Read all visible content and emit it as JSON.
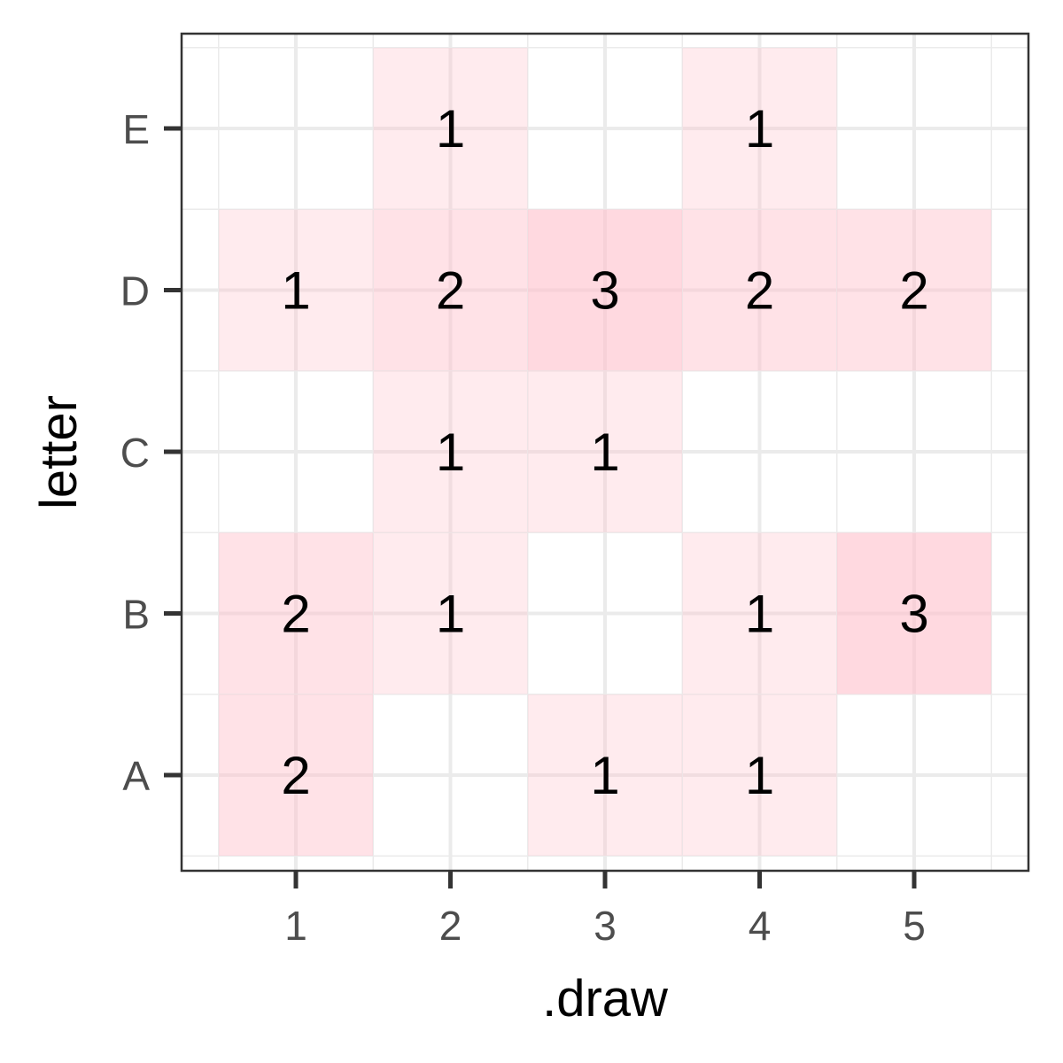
{
  "chart_data": {
    "type": "heatmap",
    "xlabel": ".draw",
    "ylabel": "letter",
    "x_categories": [
      "1",
      "2",
      "3",
      "4",
      "5"
    ],
    "y_categories": [
      "A",
      "B",
      "C",
      "D",
      "E"
    ],
    "cells": [
      {
        "x": "1",
        "y": "A",
        "value": 2
      },
      {
        "x": "3",
        "y": "A",
        "value": 1
      },
      {
        "x": "4",
        "y": "A",
        "value": 1
      },
      {
        "x": "1",
        "y": "B",
        "value": 2
      },
      {
        "x": "2",
        "y": "B",
        "value": 1
      },
      {
        "x": "4",
        "y": "B",
        "value": 1
      },
      {
        "x": "5",
        "y": "B",
        "value": 3
      },
      {
        "x": "2",
        "y": "C",
        "value": 1
      },
      {
        "x": "3",
        "y": "C",
        "value": 1
      },
      {
        "x": "1",
        "y": "D",
        "value": 1
      },
      {
        "x": "2",
        "y": "D",
        "value": 2
      },
      {
        "x": "3",
        "y": "D",
        "value": 3
      },
      {
        "x": "4",
        "y": "D",
        "value": 2
      },
      {
        "x": "5",
        "y": "D",
        "value": 2
      },
      {
        "x": "2",
        "y": "E",
        "value": 1
      },
      {
        "x": "4",
        "y": "E",
        "value": 1
      }
    ],
    "fill_color": "#ffc0cb",
    "grid": true,
    "legend": "none"
  }
}
